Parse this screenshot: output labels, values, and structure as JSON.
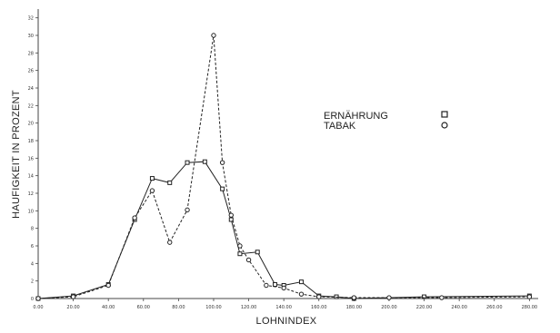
{
  "chart_data": {
    "type": "line",
    "title": "",
    "xlabel": "LOHNINDEX",
    "ylabel": "HAUFIGKEIT IN PROZENT",
    "x_ticks": [
      "0.00",
      "20.00",
      "40.00",
      "60.00",
      "80.00",
      "100.00",
      "120.00",
      "140.00",
      "160.00",
      "180.00",
      "200.00",
      "220.00",
      "240.00",
      "260.00",
      "280.00"
    ],
    "y_ticks": [
      "0",
      "2",
      "4",
      "6",
      "8",
      "10",
      "12",
      "14",
      "16",
      "18",
      "20",
      "22",
      "24",
      "26",
      "28",
      "30",
      "32"
    ],
    "xlim": [
      0,
      285
    ],
    "ylim": [
      0,
      33
    ],
    "grid": false,
    "legend_position": "top-right",
    "series": [
      {
        "name": "ERNÄHRUNG",
        "marker": "square",
        "color": "#222222",
        "points": [
          [
            0,
            0
          ],
          [
            20,
            0.3
          ],
          [
            40,
            1.6
          ],
          [
            55,
            9
          ],
          [
            65,
            13.7
          ],
          [
            75,
            13.2
          ],
          [
            85,
            15.5
          ],
          [
            95,
            15.6
          ],
          [
            105,
            12.5
          ],
          [
            110,
            9
          ],
          [
            115,
            5.1
          ],
          [
            125,
            5.3
          ],
          [
            135,
            1.6
          ],
          [
            140,
            1.5
          ],
          [
            150,
            1.9
          ],
          [
            160,
            0.3
          ],
          [
            170,
            0.2
          ],
          [
            180,
            0
          ],
          [
            220,
            0.2
          ],
          [
            280,
            0.3
          ]
        ]
      },
      {
        "name": "TABAK",
        "marker": "circle",
        "color": "#222222",
        "points": [
          [
            0,
            0
          ],
          [
            20,
            0.2
          ],
          [
            40,
            1.5
          ],
          [
            55,
            9.2
          ],
          [
            65,
            12.3
          ],
          [
            75,
            6.4
          ],
          [
            85,
            10.1
          ],
          [
            100,
            30
          ],
          [
            105,
            15.5
          ],
          [
            110,
            9.5
          ],
          [
            115,
            6
          ],
          [
            120,
            4.4
          ],
          [
            130,
            1.5
          ],
          [
            140,
            1.2
          ],
          [
            150,
            0.5
          ],
          [
            160,
            0.2
          ],
          [
            180,
            0.1
          ],
          [
            200,
            0.1
          ],
          [
            230,
            0.1
          ],
          [
            280,
            0.2
          ]
        ]
      }
    ]
  }
}
